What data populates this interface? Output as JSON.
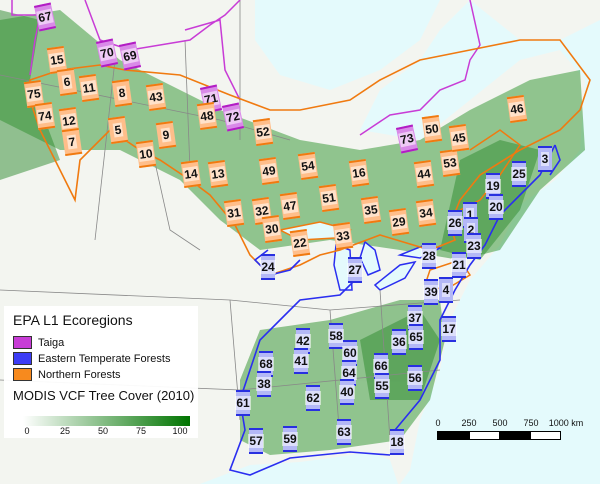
{
  "legend": {
    "title": "EPA L1 Ecoregions",
    "items": [
      {
        "label": "Taiga",
        "color": "#c83cd6"
      },
      {
        "label": "Eastern Temperate Forests",
        "color": "#3c3cf5"
      },
      {
        "label": "Northern Forests",
        "color": "#f78a1e"
      }
    ],
    "tree_cover_title": "MODIS VCF Tree Cover (2010)",
    "tree_cover_ticks": [
      "0",
      "25",
      "50",
      "75",
      "100"
    ],
    "gradient_colors": [
      "#ffffff",
      "#007400"
    ]
  },
  "scale_bar": {
    "labels": [
      "0",
      "250",
      "500",
      "750",
      "1000 km"
    ]
  },
  "colors": {
    "water": "#e4fafc",
    "land": "#f4f6f2",
    "forest": "#3e9a3e"
  },
  "markers": {
    "taiga": [
      "67",
      "70",
      "69",
      "71",
      "72",
      "73"
    ],
    "northern_forests": [
      "15",
      "6",
      "11",
      "8",
      "43",
      "75",
      "74",
      "12",
      "7",
      "5",
      "9",
      "10",
      "48",
      "52",
      "49",
      "14",
      "13",
      "54",
      "16",
      "51",
      "35",
      "29",
      "34",
      "44",
      "53",
      "50",
      "45",
      "46",
      "31",
      "32",
      "47",
      "30",
      "22",
      "33"
    ],
    "eastern_temperate_forests": [
      "3",
      "25",
      "19",
      "20",
      "1",
      "2",
      "26",
      "23",
      "28",
      "21",
      "27",
      "24",
      "39",
      "4",
      "37",
      "17",
      "36",
      "65",
      "42",
      "58",
      "60",
      "68",
      "41",
      "66",
      "64",
      "56",
      "38",
      "40",
      "55",
      "62",
      "61",
      "57",
      "59",
      "63",
      "18"
    ]
  }
}
